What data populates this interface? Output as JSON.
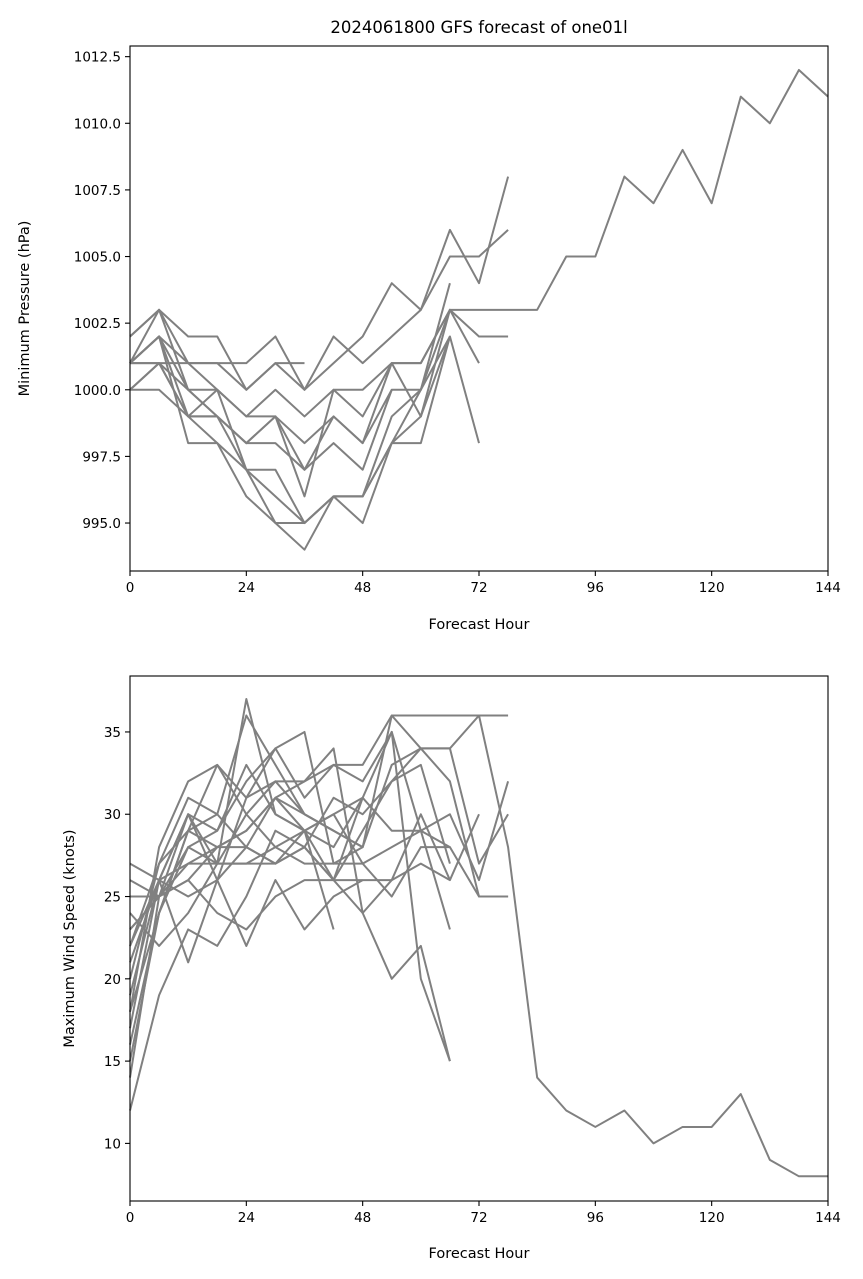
{
  "figure_title": "2024061800 GFS forecast of one01l",
  "line_color": "#808080",
  "chart_data": [
    {
      "type": "line",
      "title": "2024061800 GFS forecast of one01l",
      "xlabel": "Forecast Hour",
      "ylabel": "Minimum Pressure (hPa)",
      "xlim": [
        0,
        144
      ],
      "ylim": [
        993.2,
        1012.9
      ],
      "xticks": [
        0,
        24,
        48,
        72,
        96,
        120,
        144
      ],
      "yticks": [
        995.0,
        997.5,
        1000.0,
        1002.5,
        1005.0,
        1007.5,
        1010.0,
        1012.5
      ],
      "ytick_labels": [
        "995.0",
        "997.5",
        "1000.0",
        "1002.5",
        "1005.0",
        "1007.5",
        "1010.0",
        "1012.5"
      ],
      "grid": false,
      "series": [
        {
          "x": [
            0,
            6,
            12,
            18,
            24,
            30,
            36,
            42,
            48,
            54,
            60,
            66,
            72,
            78,
            84,
            90,
            96,
            102,
            108,
            114,
            120,
            126,
            132,
            138,
            144
          ],
          "y": [
            1001,
            1003,
            1001,
            1000,
            997,
            995,
            994,
            996,
            996,
            998,
            1000,
            1003,
            1003,
            1003,
            1003,
            1005,
            1005,
            1008,
            1007,
            1009,
            1007,
            1011,
            1010,
            1012,
            1011
          ]
        },
        {
          "x": [
            0,
            6,
            12,
            18,
            24,
            30,
            36,
            42,
            48,
            54,
            60,
            66,
            72,
            78
          ],
          "y": [
            1002,
            1003,
            1002,
            1002,
            1000,
            1001,
            1000,
            1001,
            1002,
            1004,
            1003,
            1006,
            1004,
            1008
          ]
        },
        {
          "x": [
            0,
            6,
            12,
            18,
            24,
            30,
            36,
            42,
            48,
            54,
            60,
            66,
            72,
            78
          ],
          "y": [
            1001,
            1002,
            1001,
            1001,
            1001,
            1002,
            1000,
            1002,
            1001,
            1002,
            1003,
            1005,
            1005,
            1006
          ]
        },
        {
          "x": [
            0,
            6,
            12,
            18,
            24,
            30,
            36,
            42,
            48,
            54,
            60,
            66,
            72,
            78
          ],
          "y": [
            1000,
            1001,
            999,
            999,
            998,
            999,
            997,
            999,
            998,
            1001,
            1001,
            1003,
            1002,
            1002
          ]
        },
        {
          "x": [
            0,
            6,
            12,
            18,
            24,
            30,
            36
          ],
          "y": [
            1001,
            1001,
            1001,
            1001,
            1000,
            1001,
            1001
          ]
        },
        {
          "x": [
            0,
            6,
            12,
            18,
            24,
            30,
            36,
            42,
            48,
            54,
            60,
            66,
            72
          ],
          "y": [
            1001,
            1002,
            999,
            1000,
            999,
            1000,
            999,
            1000,
            1000,
            1001,
            1001,
            1003,
            1001
          ]
        },
        {
          "x": [
            0,
            6,
            12,
            18,
            24,
            30,
            36,
            42,
            48,
            54,
            60,
            66,
            72
          ],
          "y": [
            1001,
            1002,
            1000,
            999,
            997,
            997,
            995,
            996,
            996,
            998,
            998,
            1002,
            998
          ]
        },
        {
          "x": [
            0,
            6,
            12,
            18,
            24,
            30,
            36,
            42,
            48,
            54,
            60,
            66
          ],
          "y": [
            1000,
            1000,
            999,
            998,
            996,
            995,
            995,
            996,
            996,
            999,
            1000,
            1004
          ]
        },
        {
          "x": [
            0,
            6,
            12,
            18,
            24,
            30,
            36,
            42,
            48,
            54,
            60,
            66
          ],
          "y": [
            1001,
            1002,
            998,
            998,
            997,
            996,
            995,
            996,
            995,
            998,
            999,
            1002
          ]
        },
        {
          "x": [
            0,
            6,
            12,
            18,
            24,
            30,
            36,
            42,
            48,
            54,
            60,
            66
          ],
          "y": [
            1001,
            1001,
            999,
            999,
            998,
            999,
            998,
            999,
            998,
            1000,
            1000,
            1002
          ]
        },
        {
          "x": [
            0,
            6,
            12,
            18,
            24,
            30,
            36,
            42,
            48,
            54,
            60,
            66
          ],
          "y": [
            1002,
            1003,
            1000,
            1000,
            999,
            999,
            996,
            1000,
            999,
            1001,
            999,
            1003
          ]
        },
        {
          "x": [
            0,
            6,
            12,
            18,
            24,
            30,
            36,
            42,
            48,
            54
          ],
          "y": [
            1000,
            1001,
            1000,
            999,
            998,
            998,
            997,
            998,
            997,
            1000
          ]
        }
      ]
    },
    {
      "type": "line",
      "title": "",
      "xlabel": "Forecast Hour",
      "ylabel": "Maximum Wind Speed (knots)",
      "xlim": [
        0,
        144
      ],
      "ylim": [
        6.5,
        38.4
      ],
      "xticks": [
        0,
        24,
        48,
        72,
        96,
        120,
        144
      ],
      "yticks": [
        10,
        15,
        20,
        25,
        30,
        35
      ],
      "ytick_labels": [
        "10",
        "15",
        "20",
        "25",
        "30",
        "35"
      ],
      "grid": false,
      "series": [
        {
          "x": [
            0,
            6,
            12,
            18,
            24,
            30,
            36,
            42,
            48,
            54,
            60,
            66,
            72,
            78,
            84,
            90,
            96,
            102,
            108,
            114,
            120,
            126,
            132,
            138,
            144
          ],
          "y": [
            12,
            19,
            23,
            22,
            25,
            29,
            28,
            31,
            30,
            32,
            34,
            34,
            36,
            28,
            14,
            12,
            11,
            12,
            10,
            11,
            11,
            13,
            9,
            8,
            8
          ]
        },
        {
          "x": [
            0,
            6,
            12,
            18,
            24,
            30,
            36,
            42,
            48,
            54,
            60,
            66,
            72,
            78
          ],
          "y": [
            18,
            28,
            32,
            33,
            31,
            34,
            35,
            27,
            28,
            36,
            36,
            36,
            36,
            36
          ]
        },
        {
          "x": [
            0,
            6,
            12,
            18,
            24,
            30,
            36,
            42,
            48,
            54,
            60,
            66,
            72,
            78
          ],
          "y": [
            17,
            26,
            30,
            29,
            32,
            34,
            31,
            33,
            33,
            36,
            34,
            34,
            27,
            30
          ]
        },
        {
          "x": [
            0,
            6,
            12,
            18,
            24,
            30,
            36,
            42,
            48,
            54,
            60,
            66,
            72,
            78
          ],
          "y": [
            20,
            27,
            31,
            30,
            28,
            31,
            30,
            29,
            28,
            33,
            34,
            32,
            25,
            25
          ]
        },
        {
          "x": [
            0,
            6,
            12,
            18,
            24,
            30,
            36,
            42,
            48,
            54,
            60,
            66,
            72,
            78
          ],
          "y": [
            23,
            25,
            28,
            29,
            33,
            30,
            29,
            30,
            27,
            28,
            29,
            30,
            26,
            32
          ]
        },
        {
          "x": [
            0,
            6,
            12,
            18,
            24,
            30,
            36,
            42,
            48,
            54,
            60,
            66,
            72,
            78
          ],
          "y": [
            15,
            24,
            28,
            27,
            30,
            28,
            27,
            27,
            27,
            25,
            28,
            28,
            25,
            25
          ]
        },
        {
          "x": [
            0,
            6,
            12,
            18,
            24,
            30,
            36,
            42,
            48,
            54,
            60,
            66,
            72
          ],
          "y": [
            27,
            26,
            25,
            26,
            28,
            27,
            28,
            26,
            26,
            26,
            27,
            26,
            30
          ]
        },
        {
          "x": [
            0,
            6,
            12,
            18,
            24,
            30,
            36,
            42,
            48,
            54,
            60,
            66
          ],
          "y": [
            25,
            25,
            26,
            24,
            23,
            25,
            26,
            26,
            24,
            20,
            22,
            15
          ]
        },
        {
          "x": [
            0,
            6,
            12,
            18,
            24,
            30,
            36,
            42,
            48,
            54,
            60,
            66
          ],
          "y": [
            21,
            26,
            27,
            28,
            29,
            31,
            32,
            33,
            32,
            35,
            20,
            15
          ]
        },
        {
          "x": [
            0,
            6,
            12,
            18,
            24,
            30,
            36,
            42,
            48,
            54,
            60,
            66
          ],
          "y": [
            22,
            27,
            29,
            28,
            28,
            27,
            29,
            30,
            31,
            35,
            29,
            23
          ]
        },
        {
          "x": [
            0,
            6,
            12,
            18,
            24,
            30,
            36,
            42,
            48,
            54,
            60,
            66
          ],
          "y": [
            24,
            22,
            24,
            27,
            27,
            28,
            29,
            28,
            31,
            29,
            29,
            28
          ]
        },
        {
          "x": [
            0,
            6,
            12,
            18,
            24,
            30,
            36,
            42,
            48,
            54,
            60,
            66
          ],
          "y": [
            26,
            25,
            27,
            27,
            27,
            27,
            28,
            26,
            29,
            32,
            33,
            27
          ]
        },
        {
          "x": [
            0,
            6,
            12,
            18,
            24,
            30,
            36,
            42,
            48,
            54,
            60,
            66
          ],
          "y": [
            19,
            26,
            21,
            26,
            31,
            32,
            32,
            34,
            24,
            26,
            30,
            26
          ]
        },
        {
          "x": [
            0,
            6,
            12,
            18,
            24,
            30,
            36,
            42,
            48
          ],
          "y": [
            14,
            25,
            30,
            26,
            22,
            26,
            23,
            25,
            26
          ]
        },
        {
          "x": [
            0,
            6,
            12,
            18,
            24,
            30,
            36,
            42,
            48
          ],
          "y": [
            23,
            25,
            26,
            28,
            29,
            31,
            29,
            26,
            31
          ]
        },
        {
          "x": [
            0,
            6,
            12,
            18,
            24,
            30,
            36,
            42,
            48
          ],
          "y": [
            16,
            24,
            29,
            33,
            30,
            32,
            30,
            29,
            28
          ]
        },
        {
          "x": [
            0,
            6,
            12,
            18,
            24,
            30,
            36,
            42
          ],
          "y": [
            18,
            24,
            29,
            30,
            36,
            33,
            30,
            29
          ]
        },
        {
          "x": [
            0,
            6,
            12,
            18,
            24,
            30,
            36,
            42
          ],
          "y": [
            22,
            26,
            30,
            27,
            37,
            30,
            29,
            23
          ]
        }
      ]
    }
  ]
}
